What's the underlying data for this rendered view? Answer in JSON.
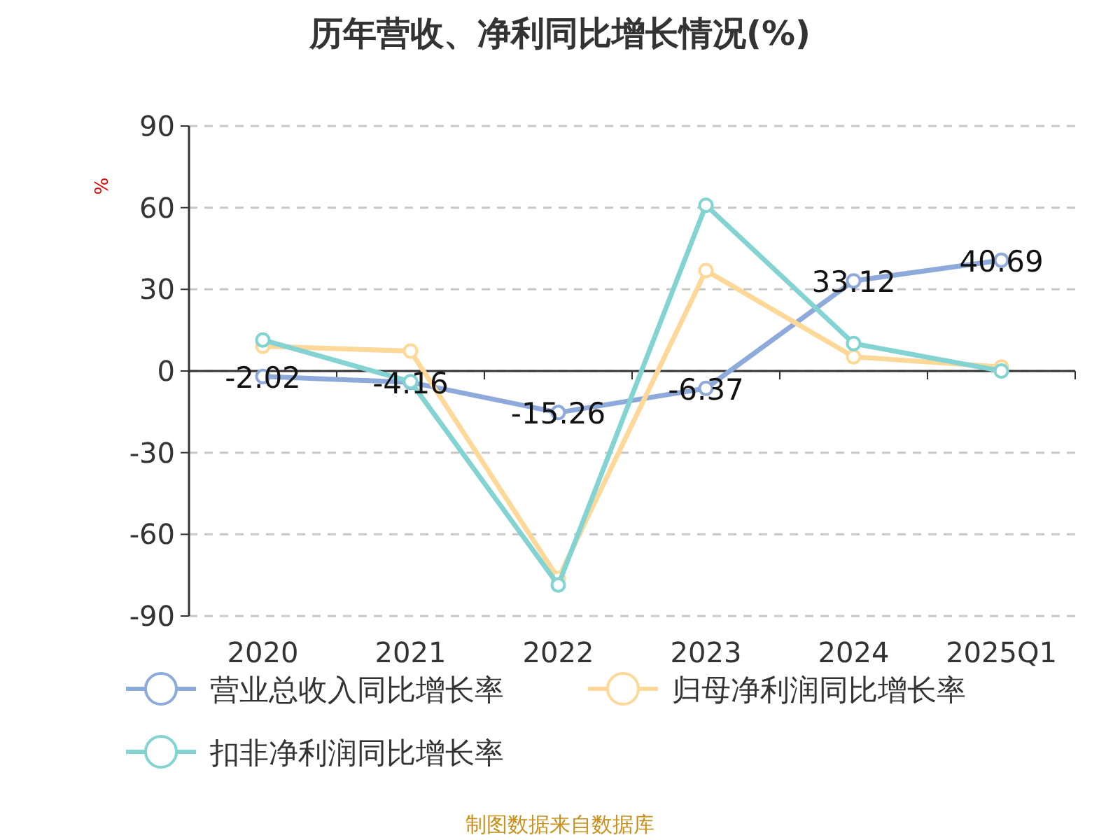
{
  "chart_data": {
    "type": "line",
    "title": "历年营收、净利同比增长情况(%)",
    "ylabel": "%",
    "categories": [
      "2020",
      "2021",
      "2022",
      "2023",
      "2024",
      "2025Q1"
    ],
    "series": [
      {
        "name": "营业总收入同比增长率",
        "color": "#8eaadb",
        "values": [
          -2.02,
          -4.16,
          -15.26,
          -6.37,
          33.12,
          40.69
        ],
        "value_labels": [
          "-2.02",
          "-4.16",
          "-15.26",
          "-6.37",
          "33.12",
          "40.69"
        ]
      },
      {
        "name": "归母净利润同比增长率",
        "color": "#fdd898",
        "values": [
          9.1,
          7.3,
          -76.2,
          36.9,
          5.2,
          1.5
        ]
      },
      {
        "name": "扣非净利润同比增长率",
        "color": "#83d3d3",
        "values": [
          11.4,
          -3.9,
          -78.6,
          60.9,
          10.1,
          0
        ]
      }
    ],
    "ylim": [
      -90,
      90
    ],
    "yticks": [
      -90,
      -60,
      -30,
      0,
      30,
      60,
      90
    ],
    "grid": "y",
    "legend": "bottom",
    "marker": "circle",
    "line_style": "solid",
    "annotations": [
      "制图数据来自数据库"
    ]
  }
}
